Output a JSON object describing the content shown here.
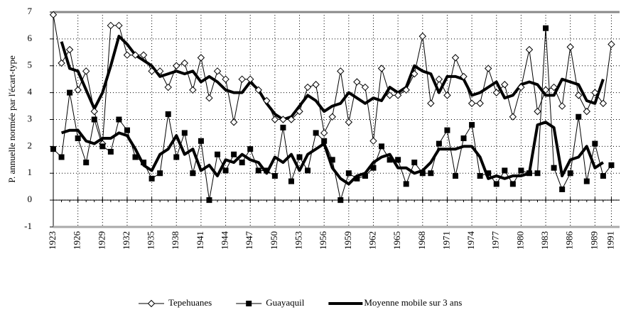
{
  "chart_data": {
    "type": "line",
    "y_label": "P. annuelle normée par l'écart-type",
    "x": [
      1923,
      1924,
      1925,
      1926,
      1927,
      1928,
      1929,
      1930,
      1931,
      1932,
      1933,
      1934,
      1935,
      1936,
      1937,
      1938,
      1939,
      1940,
      1941,
      1942,
      1943,
      1944,
      1945,
      1946,
      1947,
      1948,
      1949,
      1950,
      1951,
      1952,
      1953,
      1954,
      1955,
      1956,
      1957,
      1958,
      1959,
      1960,
      1961,
      1962,
      1963,
      1964,
      1965,
      1966,
      1967,
      1968,
      1969,
      1970,
      1971,
      1972,
      1973,
      1974,
      1975,
      1976,
      1977,
      1978,
      1979,
      1980,
      1981,
      1982,
      1983,
      1984,
      1985,
      1986,
      1987,
      1988,
      1989,
      1990,
      1991
    ],
    "xlim": [
      1923,
      1992
    ],
    "xticks": [
      1923,
      1926,
      1929,
      1932,
      1935,
      1938,
      1941,
      1944,
      1947,
      1950,
      1953,
      1956,
      1959,
      1962,
      1965,
      1968,
      1971,
      1974,
      1977,
      1980,
      1983,
      1986,
      1989,
      1991
    ],
    "ylim": [
      -1,
      7
    ],
    "yticks": [
      -1,
      0,
      1,
      2,
      3,
      4,
      5,
      6,
      7
    ],
    "grid": true,
    "series": [
      {
        "name": "Tepehuanes",
        "marker": "diamond",
        "color": "#000000",
        "values": [
          6.9,
          5.1,
          5.6,
          4.1,
          4.8,
          3.3,
          2.1,
          6.5,
          6.5,
          5.4,
          5.4,
          5.4,
          4.8,
          4.8,
          4.2,
          5.0,
          5.1,
          4.1,
          5.3,
          3.8,
          4.8,
          4.5,
          2.9,
          4.5,
          4.5,
          4.1,
          3.7,
          3.0,
          3.0,
          3.0,
          3.3,
          4.2,
          4.3,
          2.5,
          3.1,
          4.8,
          2.9,
          4.4,
          4.2,
          2.2,
          4.9,
          3.9,
          3.9,
          4.1,
          4.7,
          6.1,
          3.6,
          4.5,
          3.9,
          5.3,
          4.6,
          3.6,
          3.6,
          4.9,
          4.0,
          4.3,
          3.1,
          4.2,
          5.6,
          3.3,
          4.1,
          4.2,
          3.5,
          5.7,
          3.9,
          3.3,
          4.0,
          3.6,
          5.8
        ]
      },
      {
        "name": "Guayaquil",
        "marker": "square",
        "color": "#000000",
        "values": [
          1.9,
          1.6,
          4.0,
          2.3,
          1.4,
          3.0,
          2.0,
          1.8,
          3.0,
          2.6,
          1.6,
          1.4,
          0.8,
          1.0,
          3.2,
          1.6,
          2.5,
          1.0,
          2.2,
          0.0,
          1.7,
          1.1,
          1.7,
          1.4,
          1.9,
          1.1,
          1.1,
          0.9,
          2.7,
          0.7,
          1.6,
          1.1,
          2.5,
          2.2,
          1.5,
          0.0,
          1.0,
          0.8,
          0.9,
          1.2,
          2.0,
          1.5,
          1.5,
          0.6,
          1.4,
          1.0,
          1.0,
          2.1,
          2.6,
          0.9,
          2.3,
          2.8,
          0.9,
          1.0,
          0.6,
          1.1,
          0.6,
          1.1,
          1.0,
          1.0,
          6.4,
          1.2,
          0.4,
          1.0,
          3.1,
          0.7,
          2.1,
          0.9,
          1.3
        ]
      }
    ],
    "moving_average": {
      "name": "Moyenne  mobile sur 3 ans",
      "color": "#000000",
      "series": [
        {
          "values": [
            null,
            5.9,
            4.9,
            4.8,
            4.1,
            3.4,
            4.0,
            5.0,
            6.1,
            5.8,
            5.4,
            5.2,
            5.0,
            4.6,
            4.7,
            4.8,
            4.7,
            4.8,
            4.4,
            4.6,
            4.4,
            4.1,
            4.0,
            4.0,
            4.4,
            4.1,
            3.6,
            3.2,
            3.0,
            3.1,
            3.5,
            3.9,
            3.7,
            3.3,
            3.5,
            3.6,
            4.0,
            3.8,
            3.6,
            3.8,
            3.7,
            4.2,
            4.0,
            4.2,
            5.0,
            4.8,
            4.7,
            4.0,
            4.6,
            4.6,
            4.5,
            3.9,
            4.0,
            4.2,
            4.4,
            3.8,
            3.9,
            4.3,
            4.4,
            4.3,
            3.9,
            3.9,
            4.5,
            4.4,
            4.3,
            3.7,
            3.6,
            4.5,
            null
          ]
        },
        {
          "values": [
            null,
            2.5,
            2.6,
            2.6,
            2.2,
            2.1,
            2.3,
            2.3,
            2.5,
            2.4,
            1.9,
            1.3,
            1.1,
            1.7,
            1.9,
            2.4,
            1.7,
            1.9,
            1.1,
            1.3,
            0.9,
            1.5,
            1.4,
            1.7,
            1.5,
            1.4,
            1.0,
            1.6,
            1.4,
            1.7,
            1.1,
            1.7,
            1.9,
            2.1,
            1.2,
            0.8,
            0.6,
            0.9,
            1.0,
            1.4,
            1.6,
            1.7,
            1.2,
            1.2,
            1.0,
            1.1,
            1.4,
            1.9,
            1.9,
            1.9,
            2.0,
            2.0,
            1.6,
            0.8,
            0.9,
            0.8,
            0.9,
            0.9,
            1.0,
            2.8,
            2.9,
            2.7,
            0.9,
            1.5,
            1.6,
            2.0,
            1.2,
            1.4,
            null
          ]
        }
      ]
    }
  }
}
